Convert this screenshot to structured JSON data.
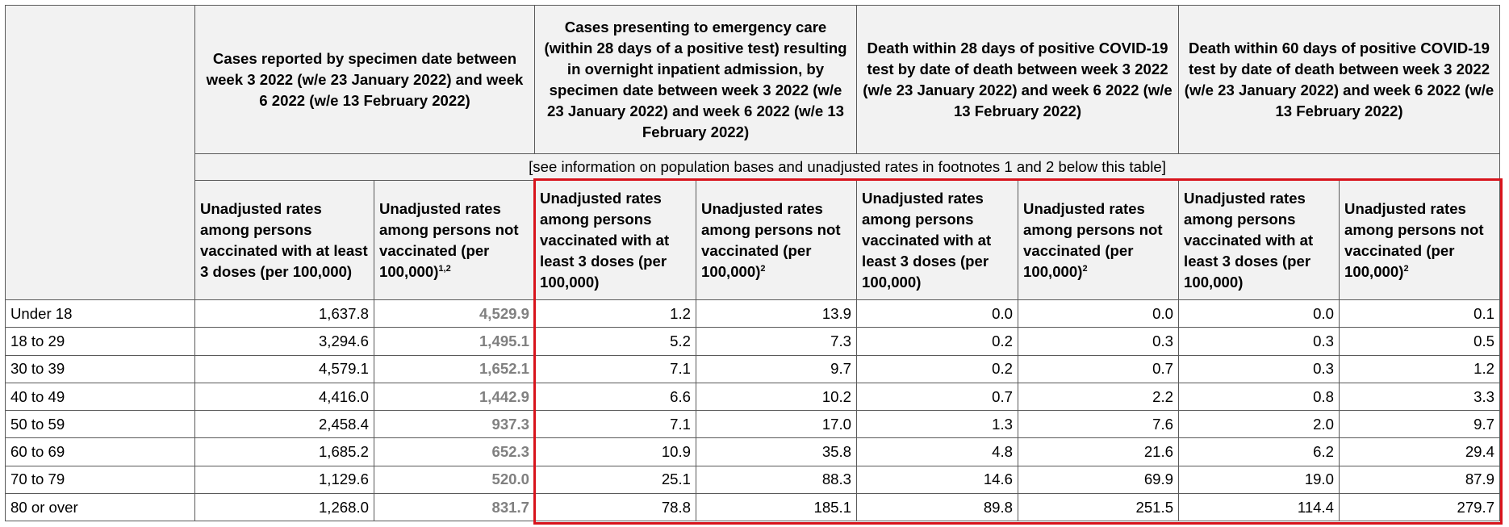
{
  "groups": [
    "Cases reported by specimen date between week 3 2022 (w/e 23 January 2022) and week 6 2022 (w/e 13 February 2022)",
    "Cases presenting to emergency care (within 28 days of a positive test) resulting in overnight inpatient admission, by specimen date between week 3 2022 (w/e 23 January 2022) and week 6 2022 (w/e 13 February 2022)",
    "Death within 28 days of positive COVID-19 test by date of death between week 3 2022 (w/e 23 January 2022) and week 6 2022 (w/e 13 February 2022)",
    "Death within 60 days of positive COVID-19 test by date of death between week 3 2022 (w/e 23 January 2022) and week 6 2022 (w/e 13 February 2022)"
  ],
  "note": "[see information on population bases and unadjusted rates in footnotes 1 and 2 below this table]",
  "subheaders": [
    {
      "text": "Unadjusted rates among persons vaccinated with at least 3 doses (per 100,000)",
      "sup": ""
    },
    {
      "text": "Unadjusted rates among persons not vaccinated (per 100,000)",
      "sup": "1,2"
    },
    {
      "text": "Unadjusted rates among persons vaccinated with at least 3 doses (per 100,000)",
      "sup": ""
    },
    {
      "text": "Unadjusted rates among persons not vaccinated (per 100,000)",
      "sup": "2"
    },
    {
      "text": "Unadjusted rates among persons vaccinated with at least 3 doses (per 100,000)",
      "sup": ""
    },
    {
      "text": "Unadjusted rates among persons not vaccinated (per 100,000)",
      "sup": "2"
    },
    {
      "text": "Unadjusted rates among persons vaccinated with at least 3 doses (per 100,000)",
      "sup": ""
    },
    {
      "text": "Unadjusted rates among persons not vaccinated (per 100,000)",
      "sup": "2"
    }
  ],
  "rows": [
    {
      "age": "Under 18",
      "values": [
        "1,637.8",
        "4,529.9",
        "1.2",
        "13.9",
        "0.0",
        "0.0",
        "0.0",
        "0.1"
      ]
    },
    {
      "age": "18 to 29",
      "values": [
        "3,294.6",
        "1,495.1",
        "5.2",
        "7.3",
        "0.2",
        "0.3",
        "0.3",
        "0.5"
      ]
    },
    {
      "age": "30 to 39",
      "values": [
        "4,579.1",
        "1,652.1",
        "7.1",
        "9.7",
        "0.2",
        "0.7",
        "0.3",
        "1.2"
      ]
    },
    {
      "age": "40 to 49",
      "values": [
        "4,416.0",
        "1,442.9",
        "6.6",
        "10.2",
        "0.7",
        "2.2",
        "0.8",
        "3.3"
      ]
    },
    {
      "age": "50 to 59",
      "values": [
        "2,458.4",
        "937.3",
        "7.1",
        "17.0",
        "1.3",
        "7.6",
        "2.0",
        "9.7"
      ]
    },
    {
      "age": "60 to 69",
      "values": [
        "1,685.2",
        "652.3",
        "10.9",
        "35.8",
        "4.8",
        "21.6",
        "6.2",
        "29.4"
      ]
    },
    {
      "age": "70 to 79",
      "values": [
        "1,129.6",
        "520.0",
        "25.1",
        "88.3",
        "14.6",
        "69.9",
        "19.0",
        "87.9"
      ]
    },
    {
      "age": "80 or over",
      "values": [
        "1,268.0",
        "831.7",
        "78.8",
        "185.1",
        "89.8",
        "251.5",
        "114.4",
        "279.7"
      ]
    }
  ],
  "colors": {
    "header_background": "#f2f2f2",
    "border": "#5a5a5a",
    "muted_value": "#808080",
    "highlight_box": "#d8141c"
  }
}
